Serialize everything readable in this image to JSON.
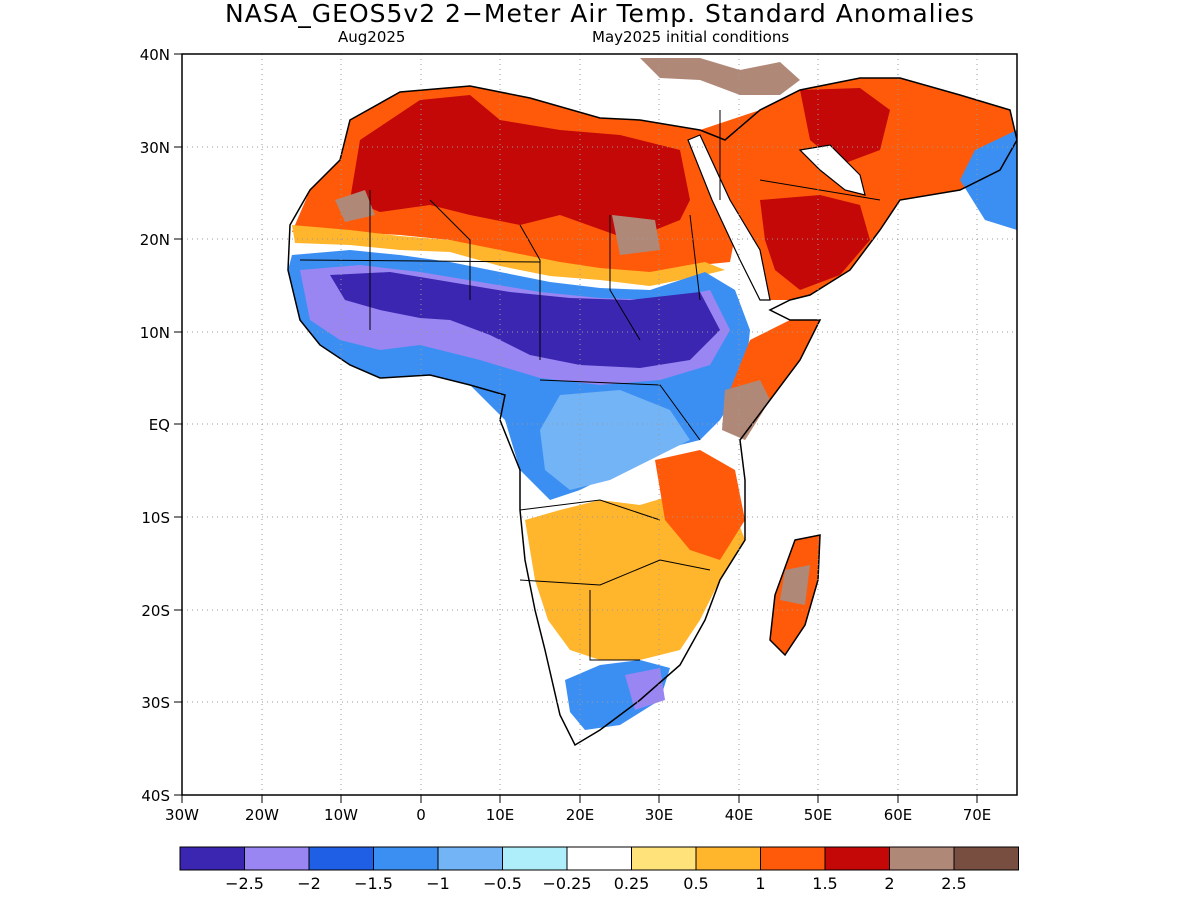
{
  "title": "NASA_GEOS5v2 2−Meter Air Temp. Standard Anomalies",
  "subtitle_left": "Aug2025",
  "subtitle_right": "May2025 initial conditions",
  "map": {
    "lon_range": [
      -30,
      75
    ],
    "lat_range": [
      -40,
      40
    ],
    "lon_ticks": [
      "30W",
      "20W",
      "10W",
      "0",
      "10E",
      "20E",
      "30E",
      "40E",
      "50E",
      "60E",
      "70E"
    ],
    "lat_ticks": [
      "40N",
      "30N",
      "20N",
      "10N",
      "EQ",
      "10S",
      "20S",
      "30S",
      "40S"
    ],
    "grid": "dotted"
  },
  "colorbar": {
    "colors": [
      "#3a26b0",
      "#9a86f2",
      "#1f5fe6",
      "#3c8ff2",
      "#72b4f6",
      "#aeeefa",
      "#ffffff",
      "#ffe27a",
      "#ffb52c",
      "#ff5a0a",
      "#c40808",
      "#b08878",
      "#774e40"
    ],
    "labels": [
      "−2.5",
      "−2",
      "−1.5",
      "−1",
      "−0.5",
      "−0.25",
      "0.25",
      "0.5",
      "1",
      "1.5",
      "2",
      "2.5"
    ]
  }
}
